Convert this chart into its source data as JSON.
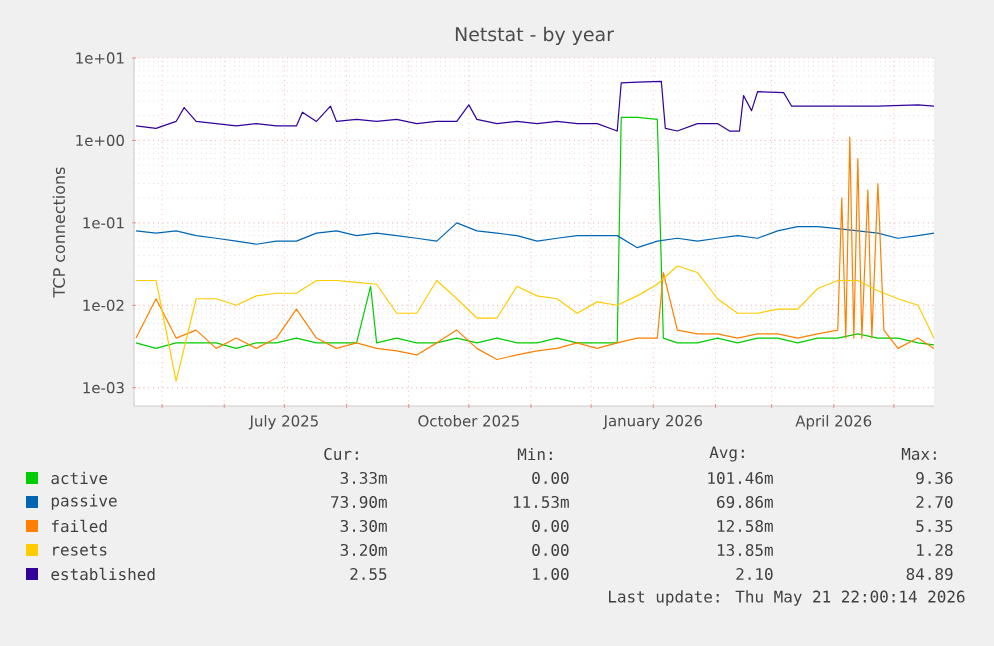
{
  "chart_data": {
    "type": "line",
    "title": "Netstat - by year",
    "ylabel": "TCP connections",
    "log": true,
    "grid": true,
    "legend": "bottom",
    "xlim": [
      "2025-04-17",
      "2026-05-21"
    ],
    "ylim": [
      0.0006,
      10
    ],
    "xticks": [
      {
        "value": "2025-05-01",
        "label": null
      },
      {
        "value": "2025-06-01",
        "label": null
      },
      {
        "value": "2025-07-01",
        "label": "July 2025"
      },
      {
        "value": "2025-08-01",
        "label": null
      },
      {
        "value": "2025-09-01",
        "label": null
      },
      {
        "value": "2025-10-01",
        "label": "October 2025"
      },
      {
        "value": "2025-11-01",
        "label": null
      },
      {
        "value": "2025-12-01",
        "label": null
      },
      {
        "value": "2026-01-01",
        "label": "January 2026"
      },
      {
        "value": "2026-02-01",
        "label": null
      },
      {
        "value": "2026-03-01",
        "label": null
      },
      {
        "value": "2026-04-01",
        "label": "April 2026"
      },
      {
        "value": "2026-05-01",
        "label": null
      }
    ],
    "yticks": [
      {
        "value": 0.001,
        "label": "1e-03"
      },
      {
        "value": 0.01,
        "label": "1e-02"
      },
      {
        "value": 0.1,
        "label": "1e-01"
      },
      {
        "value": 1,
        "label": "1e+00"
      },
      {
        "value": 10,
        "label": "1e+01"
      }
    ],
    "x": [
      "2025-04-18",
      "2025-04-28",
      "2025-05-08",
      "2025-05-18",
      "2025-05-28",
      "2025-06-07",
      "2025-06-17",
      "2025-06-27",
      "2025-07-07",
      "2025-07-17",
      "2025-07-27",
      "2025-08-06",
      "2025-08-16",
      "2025-08-26",
      "2025-09-05",
      "2025-09-15",
      "2025-09-25",
      "2025-10-05",
      "2025-10-15",
      "2025-10-25",
      "2025-11-04",
      "2025-11-14",
      "2025-11-24",
      "2025-12-04",
      "2025-12-14",
      "2025-12-24",
      "2026-01-03",
      "2026-01-13",
      "2026-01-23",
      "2026-02-02",
      "2026-02-12",
      "2026-02-22",
      "2026-03-04",
      "2026-03-14",
      "2026-03-24",
      "2026-04-03",
      "2026-04-13",
      "2026-04-23",
      "2026-05-03",
      "2026-05-13",
      "2026-05-21"
    ],
    "series": [
      {
        "name": "active",
        "color": "#00cc00",
        "x": [
          "2025-04-18",
          "2025-04-28",
          "2025-05-08",
          "2025-05-18",
          "2025-05-28",
          "2025-06-07",
          "2025-06-17",
          "2025-06-27",
          "2025-07-07",
          "2025-07-17",
          "2025-07-27",
          "2025-08-06",
          "2025-08-13",
          "2025-08-16",
          "2025-08-26",
          "2025-09-05",
          "2025-09-15",
          "2025-09-25",
          "2025-10-05",
          "2025-10-15",
          "2025-10-25",
          "2025-11-04",
          "2025-11-14",
          "2025-11-24",
          "2025-12-04",
          "2025-12-14",
          "2025-12-16",
          "2025-12-24",
          "2026-01-03",
          "2026-01-06",
          "2026-01-13",
          "2026-01-23",
          "2026-02-02",
          "2026-02-12",
          "2026-02-22",
          "2026-03-04",
          "2026-03-14",
          "2026-03-24",
          "2026-04-03",
          "2026-04-13",
          "2026-04-23",
          "2026-05-03",
          "2026-05-13",
          "2026-05-21"
        ],
        "values": [
          0.0035,
          0.003,
          0.0035,
          0.0035,
          0.0035,
          0.003,
          0.0035,
          0.0035,
          0.004,
          0.0035,
          0.0035,
          0.0035,
          0.017,
          0.0035,
          0.004,
          0.0035,
          0.0035,
          0.004,
          0.0035,
          0.004,
          0.0035,
          0.0035,
          0.004,
          0.0035,
          0.0035,
          0.0035,
          1.9,
          1.9,
          1.8,
          0.004,
          0.0035,
          0.0035,
          0.004,
          0.0035,
          0.004,
          0.004,
          0.0035,
          0.004,
          0.004,
          0.0045,
          0.004,
          0.004,
          0.0035,
          0.0033
        ]
      },
      {
        "name": "passive",
        "color": "#0066b3",
        "values": [
          0.08,
          0.075,
          0.08,
          0.07,
          0.065,
          0.06,
          0.055,
          0.06,
          0.06,
          0.075,
          0.08,
          0.07,
          0.075,
          0.07,
          0.065,
          0.06,
          0.1,
          0.08,
          0.075,
          0.07,
          0.06,
          0.065,
          0.07,
          0.07,
          0.07,
          0.05,
          0.06,
          0.065,
          0.06,
          0.065,
          0.07,
          0.065,
          0.08,
          0.09,
          0.09,
          0.085,
          0.08,
          0.075,
          0.065,
          0.07,
          0.075
        ]
      },
      {
        "name": "failed",
        "color": "#ff8000",
        "x": [
          "2025-04-18",
          "2025-04-28",
          "2025-05-08",
          "2025-05-18",
          "2025-05-28",
          "2025-06-07",
          "2025-06-17",
          "2025-06-27",
          "2025-07-07",
          "2025-07-17",
          "2025-07-27",
          "2025-08-06",
          "2025-08-16",
          "2025-08-26",
          "2025-09-05",
          "2025-09-15",
          "2025-09-25",
          "2025-10-05",
          "2025-10-15",
          "2025-10-25",
          "2025-11-04",
          "2025-11-14",
          "2025-11-24",
          "2025-12-04",
          "2025-12-14",
          "2025-12-24",
          "2026-01-03",
          "2026-01-06",
          "2026-01-13",
          "2026-01-23",
          "2026-02-02",
          "2026-02-12",
          "2026-02-22",
          "2026-03-04",
          "2026-03-14",
          "2026-03-24",
          "2026-04-03",
          "2026-04-05",
          "2026-04-07",
          "2026-04-09",
          "2026-04-11",
          "2026-04-13",
          "2026-04-15",
          "2026-04-18",
          "2026-04-20",
          "2026-04-23",
          "2026-04-26",
          "2026-05-03",
          "2026-05-13",
          "2026-05-21"
        ],
        "values": [
          0.004,
          0.012,
          0.004,
          0.005,
          0.003,
          0.004,
          0.003,
          0.004,
          0.009,
          0.004,
          0.003,
          0.0035,
          0.003,
          0.0028,
          0.0025,
          0.0035,
          0.005,
          0.003,
          0.0022,
          0.0025,
          0.0028,
          0.003,
          0.0035,
          0.003,
          0.0035,
          0.004,
          0.004,
          0.025,
          0.005,
          0.0045,
          0.0045,
          0.004,
          0.0045,
          0.0045,
          0.004,
          0.0045,
          0.005,
          0.2,
          0.004,
          1.1,
          0.004,
          0.6,
          0.004,
          0.25,
          0.004,
          0.3,
          0.005,
          0.003,
          0.004,
          0.003
        ]
      },
      {
        "name": "resets",
        "color": "#ffcc00",
        "values": [
          0.02,
          0.02,
          0.0012,
          0.012,
          0.012,
          0.01,
          0.013,
          0.014,
          0.014,
          0.02,
          0.02,
          0.019,
          0.018,
          0.008,
          0.008,
          0.02,
          0.012,
          0.007,
          0.007,
          0.017,
          0.013,
          0.012,
          0.008,
          0.011,
          0.01,
          0.013,
          0.018,
          0.03,
          0.025,
          0.012,
          0.008,
          0.008,
          0.009,
          0.009,
          0.016,
          0.02,
          0.02,
          0.015,
          0.012,
          0.01,
          0.004
        ]
      },
      {
        "name": "established",
        "color": "#330099",
        "x": [
          "2025-04-18",
          "2025-04-28",
          "2025-05-08",
          "2025-05-12",
          "2025-05-18",
          "2025-05-28",
          "2025-06-07",
          "2025-06-17",
          "2025-06-27",
          "2025-07-07",
          "2025-07-10",
          "2025-07-17",
          "2025-07-24",
          "2025-07-27",
          "2025-08-06",
          "2025-08-16",
          "2025-08-26",
          "2025-09-05",
          "2025-09-15",
          "2025-09-25",
          "2025-10-01",
          "2025-10-05",
          "2025-10-15",
          "2025-10-25",
          "2025-11-04",
          "2025-11-14",
          "2025-11-24",
          "2025-12-04",
          "2025-12-14",
          "2025-12-16",
          "2025-12-24",
          "2026-01-05",
          "2026-01-07",
          "2026-01-13",
          "2026-01-23",
          "2026-02-02",
          "2026-02-08",
          "2026-02-13",
          "2026-02-15",
          "2026-02-19",
          "2026-02-22",
          "2026-03-07",
          "2026-03-11",
          "2026-03-24",
          "2026-04-03",
          "2026-04-23",
          "2026-05-13",
          "2026-05-21"
        ],
        "values": [
          1.5,
          1.4,
          1.7,
          2.5,
          1.7,
          1.6,
          1.5,
          1.6,
          1.5,
          1.5,
          2.2,
          1.7,
          2.6,
          1.7,
          1.8,
          1.7,
          1.8,
          1.6,
          1.7,
          1.7,
          2.7,
          1.8,
          1.6,
          1.7,
          1.6,
          1.7,
          1.6,
          1.6,
          1.3,
          5.0,
          5.1,
          5.2,
          1.4,
          1.3,
          1.6,
          1.6,
          1.3,
          1.3,
          3.5,
          2.3,
          3.9,
          3.8,
          2.6,
          2.6,
          2.6,
          2.6,
          2.7,
          2.6
        ]
      }
    ],
    "annotations": [
      "Cur:",
      "Min:",
      "Avg:",
      "Max:",
      "3.33m",
      "0.00",
      "101.46m",
      "9.36",
      "73.90m",
      "11.53m",
      "69.86m",
      "2.70",
      "3.30m",
      "0.00",
      "12.58m",
      "5.35",
      "3.20m",
      "0.00",
      "13.85m",
      "1.28",
      "2.55",
      "1.00",
      "2.10",
      "84.89",
      "Last update: Thu May 21 22:00:14 2026"
    ]
  }
}
